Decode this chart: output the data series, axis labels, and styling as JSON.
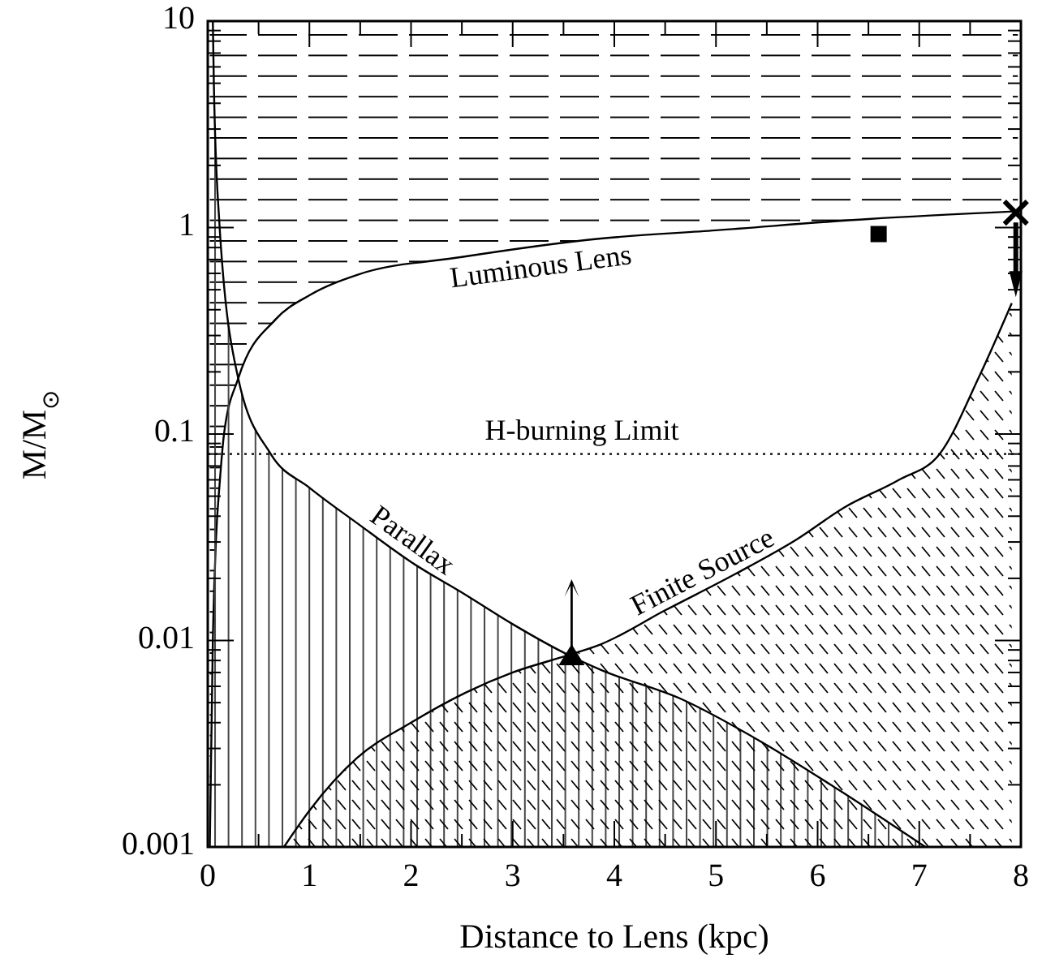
{
  "chart_data": {
    "type": "line",
    "xlabel": "Distance to Lens (kpc)",
    "ylabel": "M/M$_{⊙}$",
    "log": "y",
    "xlim": [
      0,
      8
    ],
    "ylim": [
      0.001,
      10
    ],
    "xticks": [
      0,
      {
        "value": 0.5,
        "label": null
      },
      1,
      {
        "value": 1.5,
        "label": null
      },
      2,
      {
        "value": 2.5,
        "label": null
      },
      3,
      {
        "value": 3.5,
        "label": null
      },
      4,
      {
        "value": 4.5,
        "label": null
      },
      5,
      {
        "value": 5.5,
        "label": null
      },
      6,
      {
        "value": 6.5,
        "label": null
      },
      7,
      {
        "value": 7.5,
        "label": null
      },
      8
    ],
    "yticks": [
      0.001,
      {
        "value": 0.002,
        "label": null
      },
      {
        "value": 0.003,
        "label": null
      },
      {
        "value": 0.004,
        "label": null
      },
      {
        "value": 0.005,
        "label": null
      },
      {
        "value": 0.006,
        "label": null
      },
      {
        "value": 0.007,
        "label": null
      },
      {
        "value": 0.008,
        "label": null
      },
      {
        "value": 0.009,
        "label": null
      },
      0.01,
      {
        "value": 0.02,
        "label": null
      },
      {
        "value": 0.03,
        "label": null
      },
      {
        "value": 0.04,
        "label": null
      },
      {
        "value": 0.05,
        "label": null
      },
      {
        "value": 0.06,
        "label": null
      },
      {
        "value": 0.07,
        "label": null
      },
      {
        "value": 0.08,
        "label": null
      },
      {
        "value": 0.09,
        "label": null
      },
      0.1,
      {
        "value": 0.2,
        "label": null
      },
      {
        "value": 0.3,
        "label": null
      },
      {
        "value": 0.4,
        "label": null
      },
      {
        "value": 0.5,
        "label": null
      },
      {
        "value": 0.6,
        "label": null
      },
      {
        "value": 0.7,
        "label": null
      },
      {
        "value": 0.8,
        "label": null
      },
      {
        "value": 0.9,
        "label": null
      },
      1,
      {
        "value": 2,
        "label": null
      },
      {
        "value": 3,
        "label": null
      },
      {
        "value": 4,
        "label": null
      },
      {
        "value": 5,
        "label": null
      },
      {
        "value": 6,
        "label": null
      },
      {
        "value": 7,
        "label": null
      },
      {
        "value": 8,
        "label": null
      },
      {
        "value": 9,
        "label": null
      },
      10
    ],
    "line_style": "solid",
    "marker": "none",
    "series": [
      {
        "name": "Luminous Lens",
        "color": "#000000",
        "x": [
          0.02,
          0.05,
          0.08,
          0.12,
          0.16,
          0.3,
          0.67,
          1.0,
          1.47,
          2.5,
          3.87,
          5.0,
          6.5,
          7.97
        ],
        "values": [
          0.001,
          0.01,
          0.03,
          0.06,
          0.1,
          0.186,
          0.36,
          0.47,
          0.59,
          0.72,
          0.885,
          0.97,
          1.1,
          1.2
        ],
        "lower": [
          0.001,
          0.01,
          0.03,
          0.06,
          0.1,
          0.186,
          0.36,
          0.47,
          0.59,
          0.72,
          0.885,
          0.97,
          1.1,
          1.2
        ],
        "upper": [
          10,
          10,
          10,
          10,
          10,
          10,
          10,
          10,
          10,
          10,
          10,
          10,
          10,
          10
        ]
      },
      {
        "name": "Parallax",
        "color": "#000000",
        "x": [
          0.05,
          0.06,
          0.11,
          0.3,
          0.62,
          1.0,
          1.47,
          2.0,
          2.54,
          3.0,
          3.55,
          3.87,
          4.66,
          5.46,
          6.2,
          7.06
        ],
        "values": [
          10,
          5,
          1.14,
          0.186,
          0.08,
          0.055,
          0.037,
          0.024,
          0.0166,
          0.012,
          0.0085,
          0.0072,
          0.0052,
          0.0032,
          0.0019,
          0.001
        ],
        "lower": [
          0.001,
          0.001,
          0.001,
          0.001,
          0.001,
          0.001,
          0.001,
          0.001,
          0.001,
          0.001,
          0.001,
          0.001,
          0.001,
          0.001,
          0.001,
          0.001
        ],
        "upper": [
          10,
          5,
          1.14,
          0.186,
          0.08,
          0.055,
          0.037,
          0.024,
          0.0166,
          0.012,
          0.0085,
          0.0072,
          0.0052,
          0.0032,
          0.0019,
          0.001
        ]
      },
      {
        "name": "Finite Source",
        "color": "#000000",
        "x": [
          0.75,
          1.0,
          1.47,
          2.0,
          2.54,
          3.0,
          3.55,
          3.87,
          4.5,
          5.19,
          5.8,
          6.26,
          6.8,
          7.2,
          7.59,
          7.91
        ],
        "values": [
          0.001,
          0.0015,
          0.0027,
          0.004,
          0.0056,
          0.007,
          0.0085,
          0.0096,
          0.014,
          0.021,
          0.031,
          0.044,
          0.06,
          0.08,
          0.19,
          0.43
        ],
        "lower": [
          0.001,
          0.001,
          0.001,
          0.001,
          0.001,
          0.001,
          0.001,
          0.001,
          0.001,
          0.001,
          0.001,
          0.001,
          0.001,
          0.001,
          0.001,
          0.001
        ],
        "upper": [
          0.001,
          0.0015,
          0.0027,
          0.004,
          0.0056,
          0.007,
          0.0085,
          0.0096,
          0.014,
          0.021,
          0.031,
          0.044,
          0.06,
          0.08,
          0.19,
          0.43
        ]
      },
      {
        "type": "scatter",
        "marker": "square",
        "color": "#000000",
        "x": [
          6.6
        ],
        "values": [
          0.93
        ]
      },
      {
        "type": "scatter",
        "marker": "cross",
        "color": "#000000",
        "x": [
          7.95
        ],
        "values": [
          1.18
        ]
      },
      {
        "type": "scatter",
        "marker": "triangle",
        "color": "#000000",
        "x": [
          3.58
        ],
        "values": [
          0.0083
        ]
      }
    ],
    "ref_lines": [
      {
        "axis": "y",
        "value": 0.08,
        "label": "H-burning Limit",
        "line_style": "dotted",
        "color": "#000000"
      }
    ]
  }
}
